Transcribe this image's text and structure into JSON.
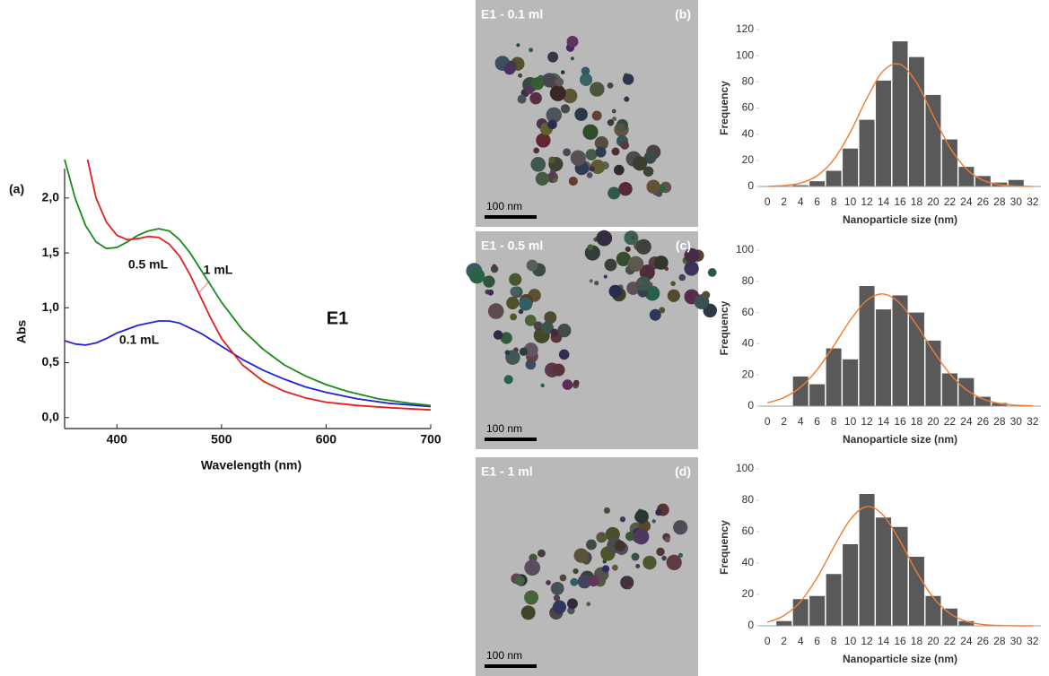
{
  "chart_data": [
    {
      "type": "line",
      "panel_label": "(a)",
      "title": "E1",
      "xlabel": "Wavelength (nm)",
      "ylabel": "Abs",
      "xlim": [
        350,
        700
      ],
      "xticks": [
        400,
        500,
        600,
        700
      ],
      "ylim": [
        -0.1,
        2.35
      ],
      "yticks": [
        {
          "value": 0,
          "label": "0,0"
        },
        {
          "value": 0.5,
          "label": "0,5"
        },
        {
          "value": 1,
          "label": "1,0"
        },
        {
          "value": 1.5,
          "label": "1,5"
        },
        {
          "value": 2,
          "label": "2,0"
        }
      ],
      "series": [
        {
          "name": "0.1 mL",
          "color": "#2222dd",
          "x": [
            350,
            360,
            370,
            380,
            390,
            400,
            420,
            440,
            450,
            460,
            480,
            500,
            520,
            540,
            560,
            580,
            600,
            630,
            660,
            700
          ],
          "values": [
            0.7,
            0.67,
            0.66,
            0.68,
            0.72,
            0.77,
            0.84,
            0.88,
            0.88,
            0.86,
            0.77,
            0.65,
            0.53,
            0.43,
            0.35,
            0.28,
            0.23,
            0.17,
            0.13,
            0.1
          ]
        },
        {
          "name": "0.5 mL",
          "color": "#1a8a1a",
          "x": [
            350,
            360,
            370,
            380,
            390,
            400,
            410,
            420,
            430,
            440,
            450,
            460,
            470,
            480,
            490,
            500,
            520,
            540,
            560,
            580,
            600,
            620,
            650,
            680,
            700
          ],
          "values": [
            2.35,
            2.0,
            1.75,
            1.6,
            1.54,
            1.55,
            1.6,
            1.66,
            1.7,
            1.72,
            1.7,
            1.62,
            1.5,
            1.35,
            1.2,
            1.05,
            0.8,
            0.62,
            0.48,
            0.38,
            0.3,
            0.24,
            0.17,
            0.13,
            0.11
          ]
        },
        {
          "name": "1 mL",
          "color": "#e02020",
          "x": [
            372,
            380,
            390,
            400,
            410,
            420,
            430,
            440,
            450,
            460,
            470,
            480,
            490,
            500,
            520,
            540,
            560,
            580,
            600,
            630,
            660,
            700
          ],
          "values": [
            2.35,
            2.0,
            1.78,
            1.66,
            1.62,
            1.63,
            1.65,
            1.64,
            1.58,
            1.47,
            1.3,
            1.1,
            0.9,
            0.72,
            0.48,
            0.33,
            0.24,
            0.18,
            0.14,
            0.11,
            0.09,
            0.07
          ]
        }
      ]
    },
    {
      "type": "bar",
      "xlabel": "Nanoparticle size (nm)",
      "ylabel": "Frequency",
      "color": "#595959",
      "categories": [
        "0",
        "2",
        "4",
        "6",
        "8",
        "10",
        "12",
        "14",
        "16",
        "18",
        "20",
        "22",
        "24",
        "26",
        "28",
        "30",
        "32"
      ],
      "values": [
        0,
        0,
        1,
        4,
        12,
        29,
        51,
        81,
        111,
        99,
        70,
        36,
        15,
        8,
        3,
        5,
        0
      ],
      "fit": {
        "color": "#ed7d31",
        "values": [
          0.1,
          0.7,
          2.6,
          8.2,
          20.5,
          41.5,
          67.5,
          88.5,
          93.4,
          79.4,
          54.3,
          30,
          13.4,
          4.8,
          1.4,
          0.3,
          0.1
        ]
      },
      "ylim": [
        0,
        120
      ],
      "yticks": [
        0,
        20,
        40,
        60,
        80,
        100,
        120
      ]
    },
    {
      "type": "bar",
      "xlabel": "Nanoparticle size (nm)",
      "ylabel": "Frequency",
      "color": "#595959",
      "categories": [
        "0",
        "2",
        "4",
        "6",
        "8",
        "10",
        "12",
        "14",
        "16",
        "18",
        "20",
        "22",
        "24",
        "26",
        "28",
        "30",
        "32"
      ],
      "values": [
        0,
        0,
        19,
        14,
        37,
        30,
        77,
        62,
        71,
        60,
        42,
        21,
        18,
        6,
        2,
        0,
        0
      ],
      "fit": {
        "color": "#ed7d31",
        "values": [
          2.1,
          5.5,
          12.2,
          23.4,
          38.7,
          55.1,
          67.8,
          71.9,
          65.8,
          52,
          35.4,
          20.8,
          10.5,
          4.6,
          1.7,
          0.6,
          0.2
        ]
      },
      "ylim": [
        0,
        100
      ],
      "yticks": [
        0,
        20,
        40,
        60,
        80,
        100
      ]
    },
    {
      "type": "bar",
      "xlabel": "Nanoparticle size (nm)",
      "ylabel": "Frequency",
      "color": "#595959",
      "categories": [
        "0",
        "2",
        "4",
        "6",
        "8",
        "10",
        "12",
        "14",
        "16",
        "18",
        "20",
        "22",
        "24",
        "26",
        "28",
        "30",
        "32"
      ],
      "values": [
        0,
        3,
        17,
        19,
        33,
        52,
        84,
        69,
        63,
        44,
        19,
        11,
        3,
        0,
        0,
        0,
        0
      ],
      "fit": {
        "color": "#ed7d31",
        "values": [
          2.3,
          6.5,
          15.5,
          30.7,
          50.1,
          67.8,
          76,
          70.4,
          54,
          34.3,
          18.1,
          7.9,
          2.8,
          0.8,
          0.2,
          0,
          0
        ]
      },
      "ylim": [
        0,
        100
      ],
      "yticks": [
        0,
        20,
        40,
        60,
        80,
        100
      ]
    }
  ],
  "images": [
    {
      "label": "E1 - 0.1 ml",
      "panel": "(b)",
      "scale": "100 nm"
    },
    {
      "label": "E1 - 0.5 ml",
      "panel": "(c)",
      "scale": "100 nm"
    },
    {
      "label": "E1 - 1 ml",
      "panel": "(d)",
      "scale": "100 nm"
    }
  ]
}
